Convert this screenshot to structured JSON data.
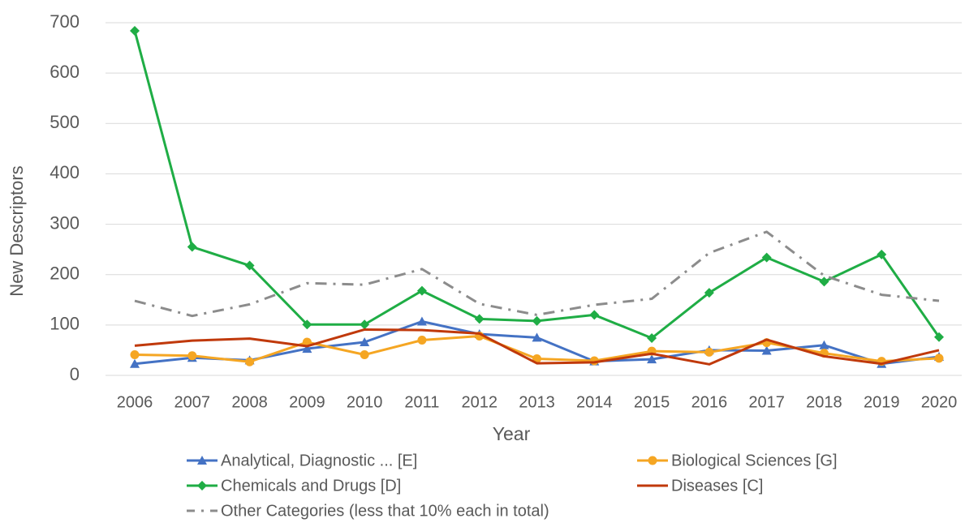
{
  "chart_data": {
    "type": "line",
    "x_label": "Year",
    "y_label": "New Descriptors",
    "categories": [
      "2006",
      "2007",
      "2008",
      "2009",
      "2010",
      "2011",
      "2012",
      "2013",
      "2014",
      "2015",
      "2016",
      "2017",
      "2018",
      "2019",
      "2020"
    ],
    "ylim": [
      0,
      700
    ],
    "yticks": [
      0,
      100,
      200,
      300,
      400,
      500,
      600,
      700
    ],
    "grid": true,
    "legend": "bottom",
    "series": [
      {
        "name": "Analytical, Diagnostic ... [E]",
        "color": "#4472c4",
        "marker": "triangle",
        "dash": "solid",
        "values": [
          23,
          35,
          30,
          53,
          66,
          107,
          82,
          75,
          28,
          32,
          50,
          49,
          60,
          23,
          37
        ]
      },
      {
        "name": "Biological Sciences [G]",
        "color": "#f5a623",
        "marker": "circle",
        "dash": "solid",
        "values": [
          41,
          39,
          27,
          66,
          41,
          70,
          78,
          33,
          29,
          48,
          46,
          65,
          44,
          28,
          34
        ]
      },
      {
        "name": "Chemicals and Drugs [D]",
        "color": "#1fad45",
        "marker": "diamond",
        "dash": "solid",
        "values": [
          684,
          255,
          218,
          101,
          101,
          168,
          112,
          108,
          120,
          74,
          164,
          234,
          186,
          240,
          76
        ]
      },
      {
        "name": "Diseases [C]",
        "color": "#c0390b",
        "marker": "none",
        "dash": "solid",
        "values": [
          59,
          69,
          73,
          58,
          91,
          90,
          83,
          24,
          26,
          43,
          22,
          71,
          38,
          23,
          50
        ]
      },
      {
        "name": "Other Categories (less that 10% each in total)",
        "color": "#8c8c8c",
        "marker": "none",
        "dash": "dash-dot",
        "values": [
          148,
          118,
          141,
          183,
          180,
          211,
          142,
          120,
          140,
          152,
          243,
          285,
          198,
          160,
          148
        ]
      }
    ]
  }
}
